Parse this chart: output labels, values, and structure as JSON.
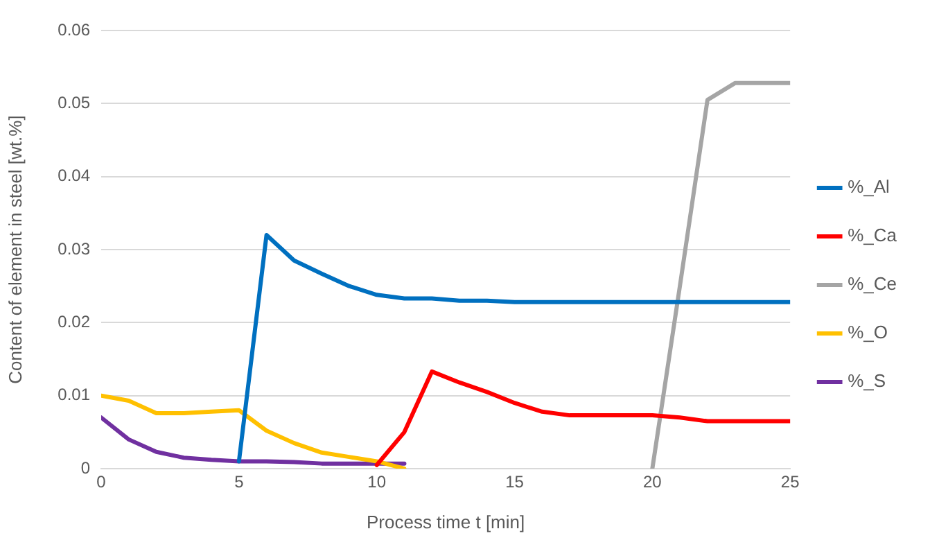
{
  "chart_data": {
    "type": "line",
    "xlabel": "Process time t [min]",
    "ylabel": "Content of element in steel [wt.%]",
    "xlim": [
      0,
      25
    ],
    "xticks": [
      0,
      5,
      10,
      15,
      20,
      25
    ],
    "ylim": [
      0,
      0.06
    ],
    "yticks": [
      0,
      0.01,
      0.02,
      0.03,
      0.04,
      0.05,
      0.06
    ],
    "grid": "y",
    "legend": "right",
    "marker": "none",
    "line_style": "solid",
    "series": [
      {
        "name": "%_Al",
        "color": "#0070c0",
        "x": [
          5,
          6,
          7,
          8,
          9,
          10,
          11,
          12,
          13,
          14,
          15,
          16,
          17,
          18,
          19,
          20,
          21,
          22,
          23,
          24,
          25
        ],
        "values": [
          0.001,
          0.032,
          0.0285,
          0.0267,
          0.025,
          0.0238,
          0.0233,
          0.0233,
          0.023,
          0.023,
          0.0228,
          0.0228,
          0.0228,
          0.0228,
          0.0228,
          0.0228,
          0.0228,
          0.0228,
          0.0228,
          0.0228,
          0.0228
        ]
      },
      {
        "name": "%_Ca",
        "color": "#ff0000",
        "x": [
          10,
          11,
          12,
          13,
          14,
          15,
          16,
          17,
          18,
          19,
          20,
          21,
          22,
          23,
          24,
          25
        ],
        "values": [
          0.0005,
          0.005,
          0.0133,
          0.0118,
          0.0105,
          0.009,
          0.0078,
          0.0073,
          0.0073,
          0.0073,
          0.0073,
          0.007,
          0.0065,
          0.0065,
          0.0065,
          0.0065
        ]
      },
      {
        "name": "%_Ce",
        "color": "#a5a5a5",
        "x": [
          20,
          21,
          22,
          23,
          24,
          25
        ],
        "values": [
          0,
          0.025,
          0.0505,
          0.0528,
          0.0528,
          0.0528
        ]
      },
      {
        "name": "%_O",
        "color": "#ffc000",
        "x": [
          0,
          1,
          2,
          3,
          4,
          5,
          6,
          7,
          8,
          9,
          10,
          11
        ],
        "values": [
          0.01,
          0.0093,
          0.0076,
          0.0076,
          0.0078,
          0.008,
          0.0052,
          0.0035,
          0.0022,
          0.0016,
          0.001,
          0
        ]
      },
      {
        "name": "%_S",
        "color": "#7030a0",
        "x": [
          0,
          1,
          2,
          3,
          4,
          5,
          6,
          7,
          8,
          9,
          10,
          11
        ],
        "values": [
          0.007,
          0.004,
          0.0023,
          0.0015,
          0.0012,
          0.001,
          0.001,
          0.0009,
          0.0007,
          0.0007,
          0.0007,
          0.0007
        ]
      }
    ]
  }
}
